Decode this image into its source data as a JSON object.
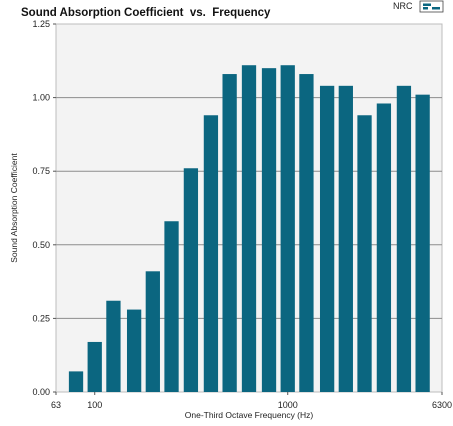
{
  "chart_data": {
    "type": "bar",
    "title": "Sound Absorption Coefficient  vs.  Frequency",
    "xlabel": "One-Third Octave Frequency (Hz)",
    "ylabel": "Sound Absorption Coefficient",
    "x_scale": "log",
    "xlim": [
      63,
      6300
    ],
    "ylim": [
      0,
      1.25
    ],
    "x_tick_labels": [
      "63",
      "100",
      "1000",
      "6300"
    ],
    "y_tick_labels": [
      "0.00",
      "0.25",
      "0.50",
      "0.75",
      "1.00",
      "1.25"
    ],
    "grid": true,
    "legend_position": "top-right",
    "legend": [
      {
        "label": "NRC"
      }
    ],
    "categories": [
      80,
      100,
      125,
      160,
      200,
      250,
      315,
      400,
      500,
      630,
      800,
      1000,
      1250,
      1600,
      2000,
      2500,
      3150,
      4000,
      5000
    ],
    "values": [
      0.07,
      0.17,
      0.31,
      0.28,
      0.41,
      0.58,
      0.76,
      0.94,
      1.08,
      1.11,
      1.1,
      1.11,
      1.08,
      1.04,
      1.04,
      0.94,
      0.98,
      1.04,
      1.01
    ],
    "colors": {
      "bar": "#0b6680",
      "plot_bg": "#f3f3f3",
      "grid": "#8c8c8c",
      "border": "#bdbdbd"
    }
  }
}
